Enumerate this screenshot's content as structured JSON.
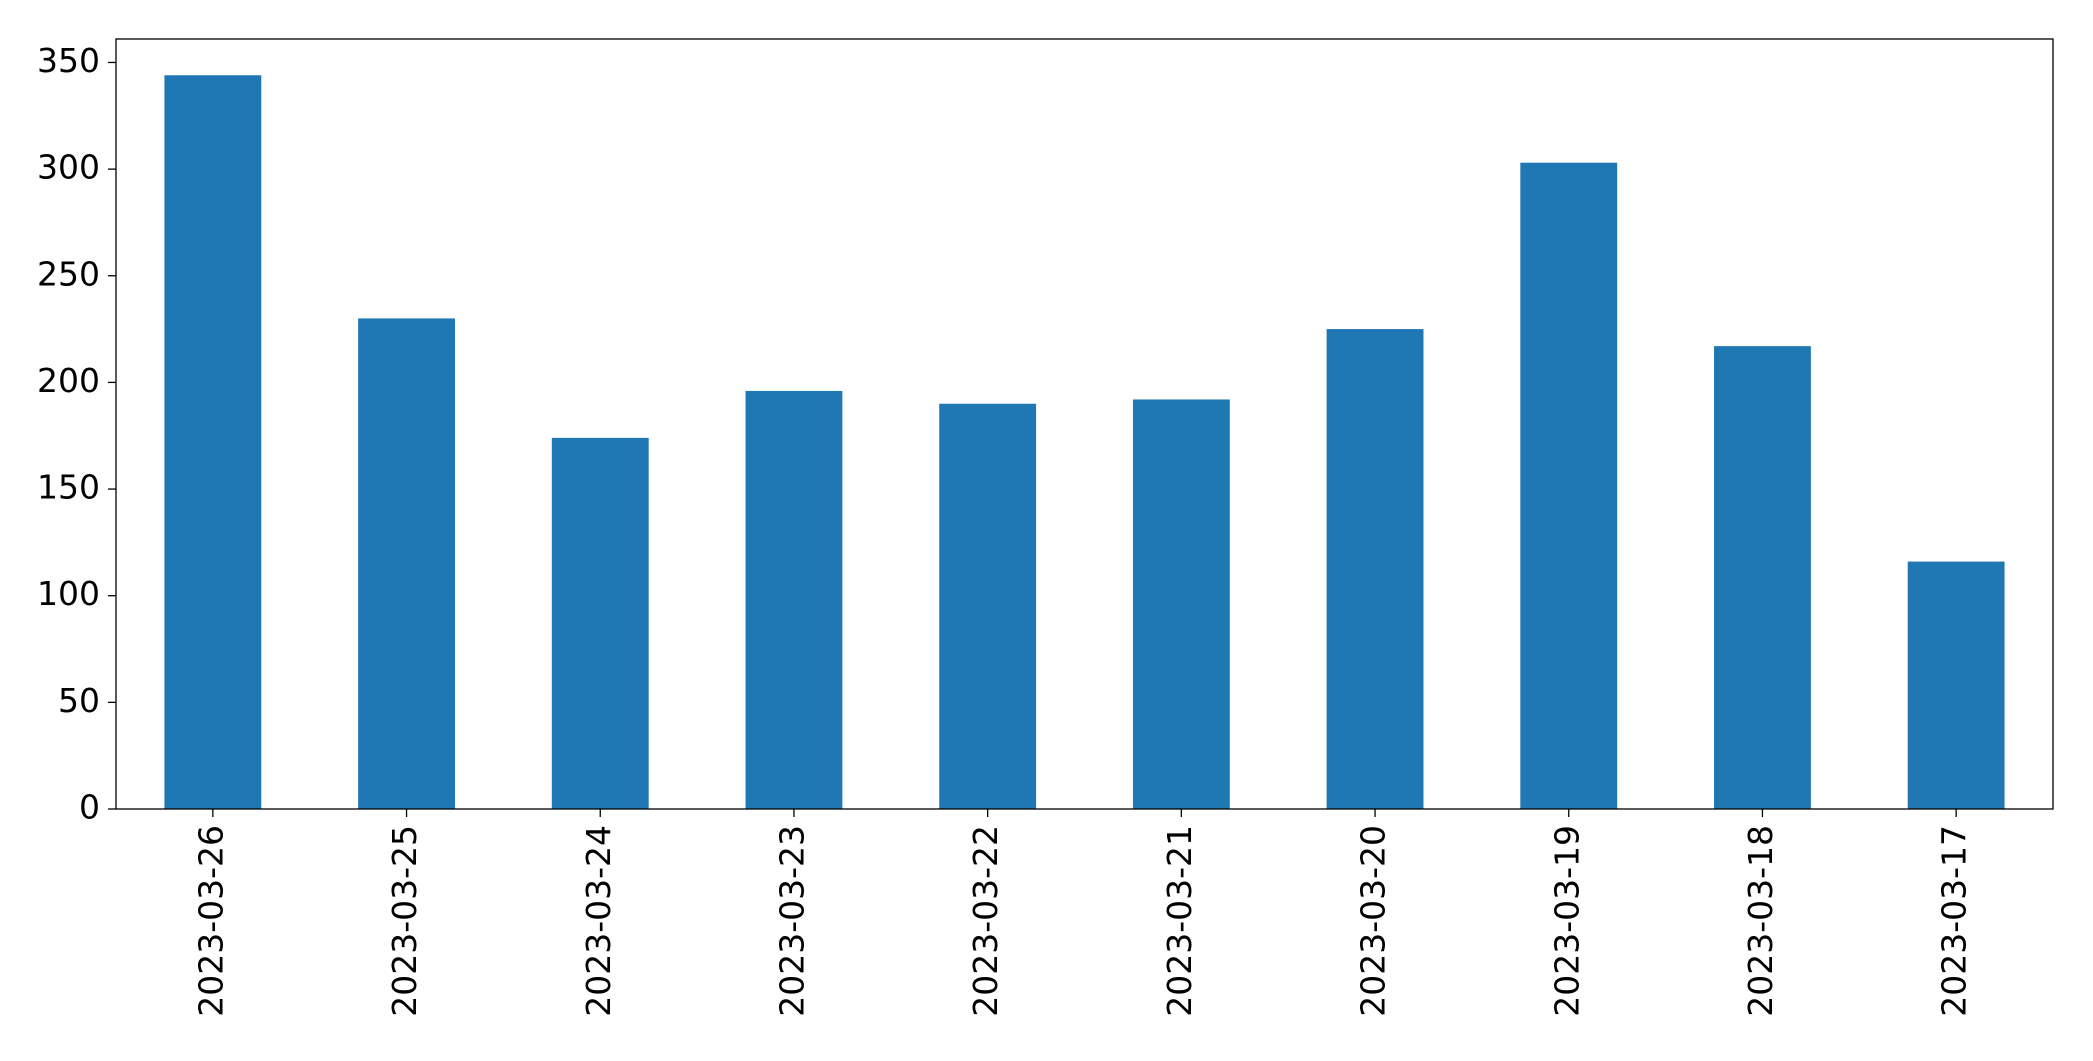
{
  "chart_data": {
    "type": "bar",
    "categories": [
      "2023-03-26",
      "2023-03-25",
      "2023-03-24",
      "2023-03-23",
      "2023-03-22",
      "2023-03-21",
      "2023-03-20",
      "2023-03-19",
      "2023-03-18",
      "2023-03-17"
    ],
    "values": [
      344,
      230,
      174,
      196,
      190,
      192,
      225,
      303,
      217,
      116
    ],
    "color": "#1f77b4",
    "ylim": [
      0,
      361
    ],
    "yticks": [
      0,
      50,
      100,
      150,
      200,
      250,
      300,
      350
    ],
    "grid": false
  }
}
